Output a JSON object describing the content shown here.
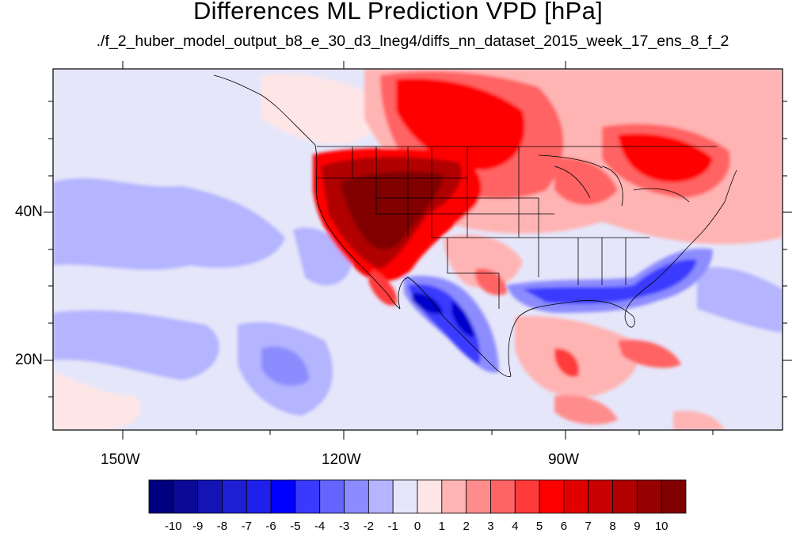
{
  "title": "Differences ML Prediction VPD [hPa]",
  "subtitle": "./f_2_huber_model_output_b8_e_30_d3_lneg4/diffs_nn_dataset_2015_week_17_ens_8_f_2",
  "lat_labels": [
    "40N",
    "20N"
  ],
  "lon_labels": [
    "150W",
    "120W",
    "90W"
  ],
  "colorbar": {
    "labels": [
      "-10",
      "-9",
      "-8",
      "-7",
      "-6",
      "-5",
      "-4",
      "-3",
      "-2",
      "-1",
      "0",
      "1",
      "2",
      "3",
      "4",
      "5",
      "6",
      "7",
      "8",
      "9",
      "10"
    ],
    "colors": [
      "#000080",
      "#0a0a96",
      "#1414b4",
      "#1e1ed2",
      "#2020ec",
      "#0000ff",
      "#3a3aff",
      "#6464ff",
      "#8c8cff",
      "#b4b4ff",
      "#e6e6fa",
      "#ffe6e6",
      "#ffb4b4",
      "#ff8c8c",
      "#ff6464",
      "#ff3a3a",
      "#ff0000",
      "#e00000",
      "#c80000",
      "#b00000",
      "#960000",
      "#800000"
    ]
  },
  "palette": {
    "neutral_blue": "#e6e6fa",
    "light_blue": "#b4b4ff",
    "mid_blue": "#8c8cff",
    "blue": "#3a3aff",
    "deep_blue": "#0000cc",
    "pale_pink": "#ffe6e6",
    "light_red": "#ffb4b4",
    "mid_red": "#ff8c8c",
    "red": "#ff3a3a",
    "bright_red": "#ff0000",
    "dark_red": "#b00000",
    "maroon": "#800000"
  }
}
